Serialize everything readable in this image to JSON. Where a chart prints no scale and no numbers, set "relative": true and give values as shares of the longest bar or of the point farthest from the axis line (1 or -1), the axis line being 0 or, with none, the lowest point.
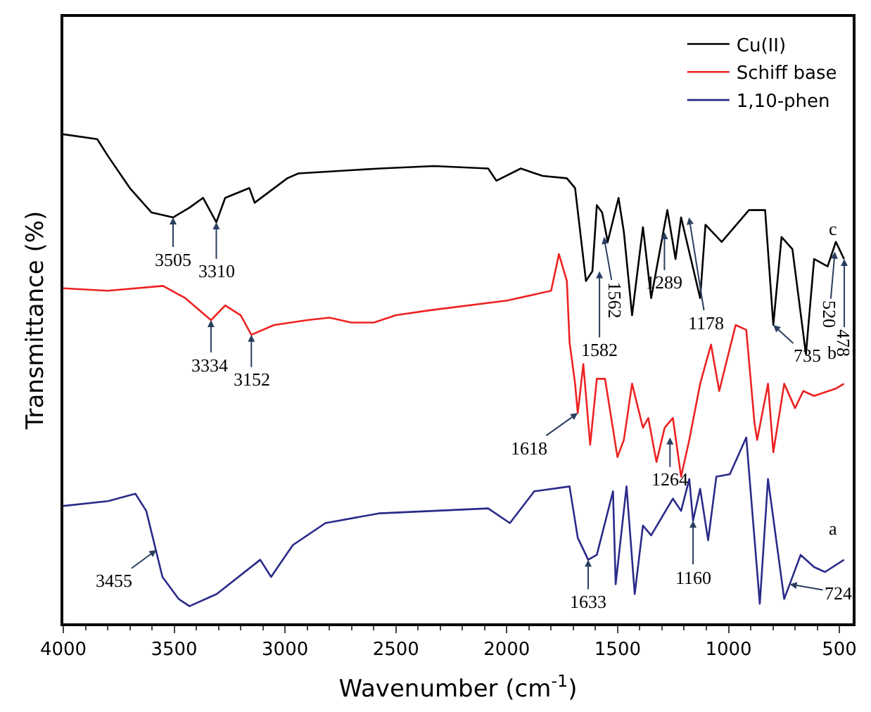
{
  "chart_data": {
    "type": "line",
    "xlabel": "Wavenumber (cm$^{-1}$)",
    "ylabel": "Transmittance (%)",
    "relative": true,
    "xlim": [
      4000,
      440
    ],
    "xticks": [
      4000,
      3500,
      3000,
      2500,
      2000,
      1500,
      1000,
      500
    ],
    "tick_labels": "x",
    "legend": "top right",
    "series": [
      {
        "name": "Cu(II)",
        "color": "#000000",
        "x": [
          4000,
          3847,
          3798,
          3700,
          3602,
          3505,
          3431,
          3370,
          3310,
          3270,
          3161,
          3137,
          2990,
          2940,
          2573,
          2328,
          2084,
          2047,
          1937,
          1839,
          1729,
          1692,
          1643,
          1614,
          1594,
          1570,
          1545,
          1496,
          1472,
          1435,
          1386,
          1349,
          1276,
          1239,
          1214,
          1128,
          1104,
          1031,
          908,
          835,
          798,
          761,
          712,
          651,
          614,
          553,
          516,
          479
        ],
        "values": [
          1.0,
          0.99,
          0.955,
          0.89,
          0.84,
          0.83,
          0.85,
          0.87,
          0.82,
          0.87,
          0.89,
          0.86,
          0.91,
          0.92,
          0.93,
          0.935,
          0.93,
          0.905,
          0.93,
          0.915,
          0.91,
          0.89,
          0.7,
          0.72,
          0.855,
          0.84,
          0.78,
          0.87,
          0.8,
          0.63,
          0.81,
          0.665,
          0.845,
          0.745,
          0.83,
          0.665,
          0.815,
          0.78,
          0.845,
          0.845,
          0.61,
          0.79,
          0.765,
          0.55,
          0.745,
          0.73,
          0.78,
          0.745
        ]
      },
      {
        "name": "Schiff base",
        "color": "#ee2222",
        "x": [
          4000,
          3800,
          3550,
          3450,
          3334,
          3270,
          3200,
          3152,
          3050,
          2900,
          2800,
          2700,
          2600,
          2500,
          2350,
          2000,
          1800,
          1765,
          1729,
          1717,
          1692,
          1680,
          1655,
          1624,
          1594,
          1557,
          1501,
          1472,
          1435,
          1386,
          1362,
          1325,
          1288,
          1251,
          1214,
          1177,
          1128,
          1079,
          1042,
          968,
          920,
          883,
          871,
          822,
          798,
          749,
          700,
          663,
          614,
          516,
          479
        ],
        "values": [
          0.685,
          0.68,
          0.69,
          0.665,
          0.62,
          0.65,
          0.63,
          0.59,
          0.61,
          0.62,
          0.625,
          0.615,
          0.615,
          0.63,
          0.64,
          0.66,
          0.68,
          0.755,
          0.7,
          0.575,
          0.49,
          0.43,
          0.53,
          0.365,
          0.5,
          0.5,
          0.34,
          0.375,
          0.49,
          0.4,
          0.42,
          0.33,
          0.4,
          0.42,
          0.3,
          0.375,
          0.49,
          0.57,
          0.475,
          0.61,
          0.6,
          0.41,
          0.375,
          0.49,
          0.35,
          0.49,
          0.44,
          0.475,
          0.465,
          0.48,
          0.49
        ]
      },
      {
        "name": "1,10-phen",
        "color": "#2a2a8a",
        "x": [
          4000,
          3798,
          3675,
          3626,
          3553,
          3480,
          3431,
          3308,
          3112,
          3063,
          2965,
          2818,
          2573,
          2084,
          1986,
          1876,
          1717,
          1680,
          1633,
          1594,
          1521,
          1509,
          1460,
          1423,
          1386,
          1349,
          1251,
          1214,
          1177,
          1160,
          1128,
          1092,
          1055,
          994,
          920,
          859,
          822,
          749,
          724,
          675,
          614,
          565,
          479
        ],
        "values": [
          0.24,
          0.25,
          0.265,
          0.23,
          0.095,
          0.05,
          0.035,
          0.06,
          0.13,
          0.095,
          0.16,
          0.205,
          0.225,
          0.235,
          0.205,
          0.27,
          0.28,
          0.175,
          0.13,
          0.14,
          0.27,
          0.08,
          0.28,
          0.06,
          0.2,
          0.18,
          0.255,
          0.23,
          0.295,
          0.21,
          0.275,
          0.17,
          0.3,
          0.305,
          0.38,
          0.04,
          0.295,
          0.05,
          0.08,
          0.14,
          0.115,
          0.105,
          0.13
        ]
      }
    ],
    "annotations": [
      {
        "text": "3505",
        "x": 3505,
        "y": 0.83
      },
      {
        "text": "3310",
        "x": 3310,
        "y": 0.82
      },
      {
        "text": "1562",
        "x": 1562,
        "y": 0.79
      },
      {
        "text": "1582",
        "x": 1582,
        "y": 0.72
      },
      {
        "text": "1289",
        "x": 1289,
        "y": 0.8
      },
      {
        "text": "1178",
        "x": 1178,
        "y": 0.83
      },
      {
        "text": "735",
        "x": 798,
        "y": 0.61
      },
      {
        "text": "520",
        "x": 520,
        "y": 0.76
      },
      {
        "text": "478",
        "x": 478,
        "y": 0.745
      },
      {
        "text": "c",
        "x": 479,
        "y": 0.745
      },
      {
        "text": "3334",
        "x": 3334,
        "y": 0.62
      },
      {
        "text": "3152",
        "x": 3152,
        "y": 0.59
      },
      {
        "text": "1618",
        "x": 1680,
        "y": 0.43
      },
      {
        "text": "1264",
        "x": 1264,
        "y": 0.38
      },
      {
        "text": "b",
        "x": 479,
        "y": 0.49
      },
      {
        "text": "3455",
        "x": 3580,
        "y": 0.15
      },
      {
        "text": "1633",
        "x": 1633,
        "y": 0.13
      },
      {
        "text": "1160",
        "x": 1160,
        "y": 0.21
      },
      {
        "text": "724",
        "x": 724,
        "y": 0.08
      },
      {
        "text": "a",
        "x": 479,
        "y": 0.13
      }
    ]
  }
}
